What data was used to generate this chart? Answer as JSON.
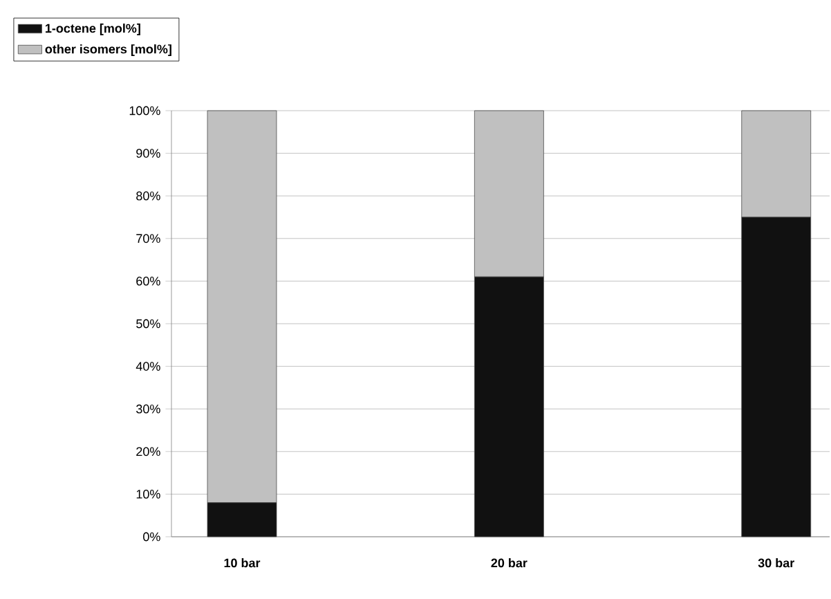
{
  "chart_data": {
    "type": "bar",
    "stacked": true,
    "categories": [
      "10 bar",
      "20 bar",
      "30 bar"
    ],
    "series": [
      {
        "name": "1-octene [mol%]",
        "color": "#111111",
        "values": [
          8,
          61,
          75
        ]
      },
      {
        "name": "other isomers [mol%]",
        "color": "#c0c0c0",
        "values": [
          92,
          39,
          25
        ]
      }
    ],
    "ylim": [
      0,
      100
    ],
    "yticks": [
      {
        "value": 0,
        "label": "0%"
      },
      {
        "value": 10,
        "label": "10%"
      },
      {
        "value": 20,
        "label": "20%"
      },
      {
        "value": 30,
        "label": "30%"
      },
      {
        "value": 40,
        "label": "40%"
      },
      {
        "value": 50,
        "label": "50%"
      },
      {
        "value": 60,
        "label": "60%"
      },
      {
        "value": 70,
        "label": "70%"
      },
      {
        "value": 80,
        "label": "80%"
      },
      {
        "value": 90,
        "label": "90%"
      },
      {
        "value": 100,
        "label": "100%"
      }
    ],
    "grid": "y",
    "legend": "top left"
  }
}
